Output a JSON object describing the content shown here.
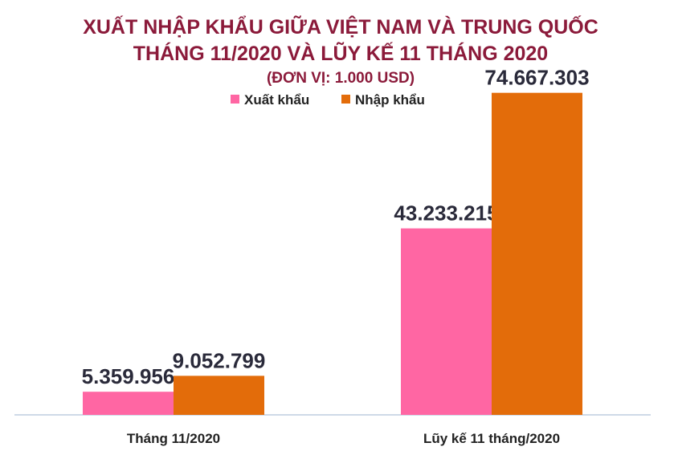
{
  "chart_data": {
    "type": "bar",
    "title_line1": "XUẤT NHẬP KHẨU GIỮA VIỆT NAM VÀ TRUNG QUỐC",
    "title_line2": "THÁNG 11/2020 VÀ LŨY KẾ 11 THÁNG 2020",
    "subtitle": "(ĐƠN VỊ: 1.000 USD)",
    "categories": [
      "Tháng 11/2020",
      "Lũy kế 11 tháng/2020"
    ],
    "series": [
      {
        "name": "Xuất khẩu",
        "color": "#ff66a3",
        "values": [
          5359956,
          43233215
        ],
        "labels": [
          "5.359.956",
          "43.233.215"
        ]
      },
      {
        "name": "Nhập khẩu",
        "color": "#e36c0a",
        "values": [
          9052799,
          74667303
        ],
        "labels": [
          "9.052.799",
          "74.667.303"
        ]
      }
    ],
    "ylim": [
      0,
      80000000
    ],
    "grid": false,
    "legend_position": "top-center",
    "colors": {
      "title": "#8b1a3a",
      "axis": "#9db5cf"
    }
  }
}
